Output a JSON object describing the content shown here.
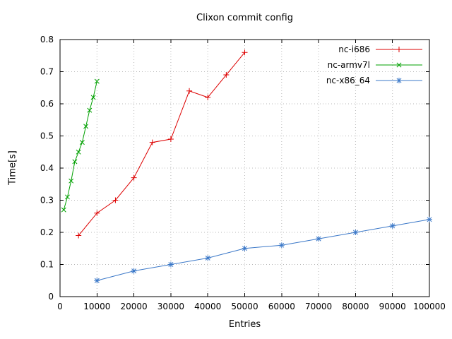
{
  "chart_data": {
    "type": "line",
    "title": "Clixon commit config",
    "xlabel": "Entries",
    "ylabel": "Time[s]",
    "xlim": [
      0,
      100000
    ],
    "ylim": [
      0,
      0.8
    ],
    "grid": true,
    "legend_position": "top-right",
    "xticks": [
      0,
      10000,
      20000,
      30000,
      40000,
      50000,
      60000,
      70000,
      80000,
      90000,
      100000
    ],
    "xtick_labels": [
      "0",
      "10000",
      "20000",
      "30000",
      "40000",
      "50000",
      "60000",
      "70000",
      "80000",
      "90000",
      "100000"
    ],
    "yticks": [
      0,
      0.1,
      0.2,
      0.3,
      0.4,
      0.5,
      0.6,
      0.7,
      0.8
    ],
    "ytick_labels": [
      "0",
      "0.1",
      "0.2",
      "0.3",
      "0.4",
      "0.5",
      "0.6",
      "0.7",
      "0.8"
    ],
    "series": [
      {
        "name": "nc-i686",
        "color": "#dd0000",
        "marker": "plus",
        "points": [
          [
            5000,
            0.19
          ],
          [
            10000,
            0.26
          ],
          [
            15000,
            0.3
          ],
          [
            20000,
            0.37
          ],
          [
            25000,
            0.48
          ],
          [
            30000,
            0.49
          ],
          [
            35000,
            0.64
          ],
          [
            40000,
            0.62
          ],
          [
            45000,
            0.69
          ],
          [
            50000,
            0.76
          ]
        ]
      },
      {
        "name": "nc-armv7l",
        "color": "#00a000",
        "marker": "cross",
        "points": [
          [
            1000,
            0.27
          ],
          [
            2000,
            0.31
          ],
          [
            3000,
            0.36
          ],
          [
            4000,
            0.42
          ],
          [
            5000,
            0.45
          ],
          [
            6000,
            0.48
          ],
          [
            7000,
            0.53
          ],
          [
            8000,
            0.58
          ],
          [
            9000,
            0.62
          ],
          [
            10000,
            0.67
          ]
        ]
      },
      {
        "name": "nc-x86_64",
        "color": "#3b78c8",
        "marker": "star",
        "points": [
          [
            10000,
            0.05
          ],
          [
            20000,
            0.08
          ],
          [
            30000,
            0.1
          ],
          [
            40000,
            0.12
          ],
          [
            50000,
            0.15
          ],
          [
            60000,
            0.16
          ],
          [
            70000,
            0.18
          ],
          [
            80000,
            0.2
          ],
          [
            90000,
            0.22
          ],
          [
            100000,
            0.24
          ]
        ]
      }
    ],
    "colors": {
      "grid": "#b8b8b8",
      "border": "#000000",
      "background": "#ffffff"
    }
  }
}
